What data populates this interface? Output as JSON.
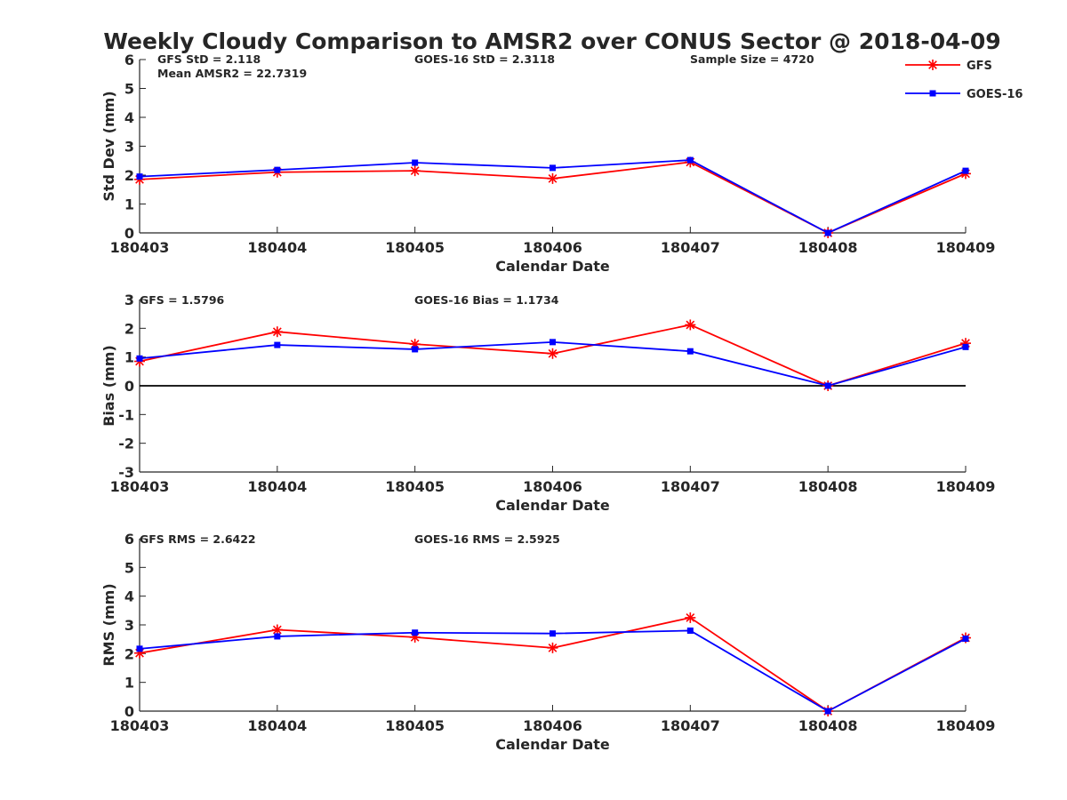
{
  "title": "Weekly Cloudy Comparison to AMSR2 over CONUS Sector @ 2018-04-09",
  "legend": [
    {
      "label": "GFS",
      "color": "#ff0000",
      "marker": "asterisk"
    },
    {
      "label": "GOES-16",
      "color": "#0000ff",
      "marker": "square"
    }
  ],
  "chart_data": [
    {
      "type": "line",
      "xlabel": "Calendar Date",
      "ylabel": "Std Dev (mm)",
      "ylim": [
        0,
        6
      ],
      "yticks": [
        "0",
        "1",
        "2",
        "3",
        "4",
        "5",
        "6"
      ],
      "categories": [
        "180403",
        "180404",
        "180405",
        "180406",
        "180407",
        "180408",
        "180409"
      ],
      "series": [
        {
          "name": "GFS",
          "color": "#ff0000",
          "values": [
            1.85,
            2.1,
            2.15,
            1.88,
            2.45,
            0.0,
            2.05
          ]
        },
        {
          "name": "GOES-16",
          "color": "#0000ff",
          "values": [
            1.95,
            2.18,
            2.43,
            2.25,
            2.52,
            0.0,
            2.15
          ]
        }
      ],
      "annotations": [
        "GFS StD = 2.118",
        "Mean AMSR2 = 22.7319",
        "GOES-16 StD = 2.3118",
        "Sample Size = 4720"
      ]
    },
    {
      "type": "line",
      "xlabel": "Calendar Date",
      "ylabel": "Bias (mm)",
      "ylim": [
        -3,
        3
      ],
      "yticks": [
        "-3",
        "-2",
        "-1",
        "0",
        "1",
        "2",
        "3"
      ],
      "zero_line": true,
      "categories": [
        "180403",
        "180404",
        "180405",
        "180406",
        "180407",
        "180408",
        "180409"
      ],
      "series": [
        {
          "name": "GFS",
          "color": "#ff0000",
          "values": [
            0.85,
            1.88,
            1.45,
            1.12,
            2.12,
            0.0,
            1.48
          ]
        },
        {
          "name": "GOES-16",
          "color": "#0000ff",
          "values": [
            0.95,
            1.42,
            1.27,
            1.52,
            1.2,
            0.0,
            1.35
          ]
        }
      ],
      "annotations": [
        "GFS = 1.5796",
        "GOES-16 Bias  = 1.1734"
      ]
    },
    {
      "type": "line",
      "xlabel": "Calendar Date",
      "ylabel": "RMS (mm)",
      "ylim": [
        0,
        6
      ],
      "yticks": [
        "0",
        "1",
        "2",
        "3",
        "4",
        "5",
        "6"
      ],
      "categories": [
        "180403",
        "180404",
        "180405",
        "180406",
        "180407",
        "180408",
        "180409"
      ],
      "series": [
        {
          "name": "GFS",
          "color": "#ff0000",
          "values": [
            2.02,
            2.83,
            2.57,
            2.2,
            3.25,
            0.0,
            2.55
          ]
        },
        {
          "name": "GOES-16",
          "color": "#0000ff",
          "values": [
            2.17,
            2.6,
            2.73,
            2.7,
            2.8,
            0.0,
            2.52
          ]
        }
      ],
      "annotations": [
        "GFS RMS = 2.6422",
        "GOES-16 RMS = 2.5925"
      ]
    }
  ]
}
